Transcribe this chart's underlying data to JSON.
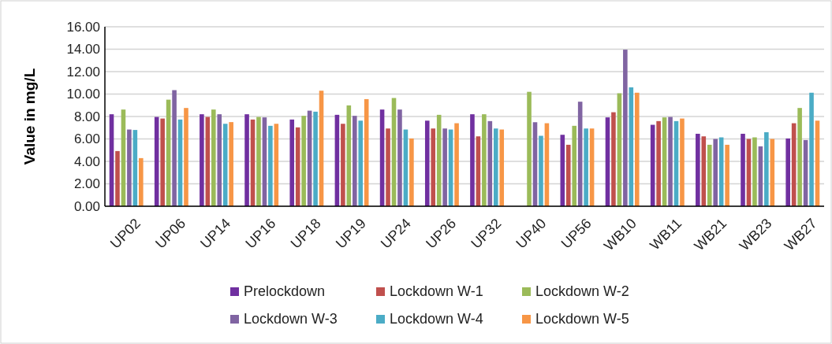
{
  "chart_data": {
    "type": "bar",
    "ylabel": "Value in mg/L",
    "categories": [
      "UP02",
      "UP06",
      "UP14",
      "UP16",
      "UP18",
      "UP19",
      "UP24",
      "UP26",
      "UP32",
      "UP40",
      "UP56",
      "WB10",
      "WB11",
      "WB21",
      "WB23",
      "WB27"
    ],
    "series": [
      {
        "name": "Prelockdown",
        "color": "#7030a0",
        "values": [
          8.2,
          7.96,
          8.2,
          8.2,
          7.73,
          8.15,
          8.62,
          7.63,
          8.2,
          null,
          6.37,
          7.92,
          7.26,
          6.46,
          6.46,
          6.04
        ]
      },
      {
        "name": "Lockdown W-1",
        "color": "#c0504d",
        "values": [
          4.92,
          7.82,
          7.96,
          7.73,
          7.03,
          7.35,
          6.93,
          6.93,
          6.23,
          null,
          5.48,
          8.38,
          7.59,
          6.23,
          6.0,
          7.4
        ]
      },
      {
        "name": "Lockdown W-2",
        "color": "#9bbb59",
        "values": [
          8.62,
          9.5,
          8.62,
          7.96,
          8.06,
          8.99,
          9.65,
          8.15,
          8.2,
          10.2,
          7.17,
          10.07,
          7.92,
          5.48,
          6.14,
          8.76
        ]
      },
      {
        "name": "Lockdown W-3",
        "color": "#8064a2",
        "values": [
          6.84,
          10.35,
          8.2,
          7.92,
          8.52,
          8.06,
          8.62,
          6.93,
          7.59,
          7.49,
          9.32,
          13.96,
          7.96,
          6.0,
          5.34,
          5.9
        ]
      },
      {
        "name": "Lockdown W-4",
        "color": "#4bacc6",
        "values": [
          6.8,
          7.73,
          7.35,
          7.17,
          8.43,
          7.63,
          6.84,
          6.84,
          6.93,
          6.28,
          6.93,
          10.6,
          7.59,
          6.14,
          6.6,
          10.12
        ]
      },
      {
        "name": "Lockdown W-5",
        "color": "#f79646",
        "values": [
          4.29,
          8.76,
          7.5,
          7.35,
          10.3,
          9.55,
          6.04,
          7.4,
          6.84,
          7.4,
          6.93,
          10.12,
          7.82,
          5.48,
          6.0,
          7.63
        ]
      }
    ],
    "ylim": [
      0,
      16
    ],
    "yticks": [
      {
        "value": 0,
        "label": "0.00"
      },
      {
        "value": 2,
        "label": "2.00"
      },
      {
        "value": 4,
        "label": "4.00"
      },
      {
        "value": 6,
        "label": "6.00"
      },
      {
        "value": 8,
        "label": "8.00"
      },
      {
        "value": 10,
        "label": "10.00"
      },
      {
        "value": 12,
        "label": "12.00"
      },
      {
        "value": 14,
        "label": "14.00"
      },
      {
        "value": 16,
        "label": "16.00"
      }
    ],
    "grid": "y",
    "legend": "bottom"
  }
}
